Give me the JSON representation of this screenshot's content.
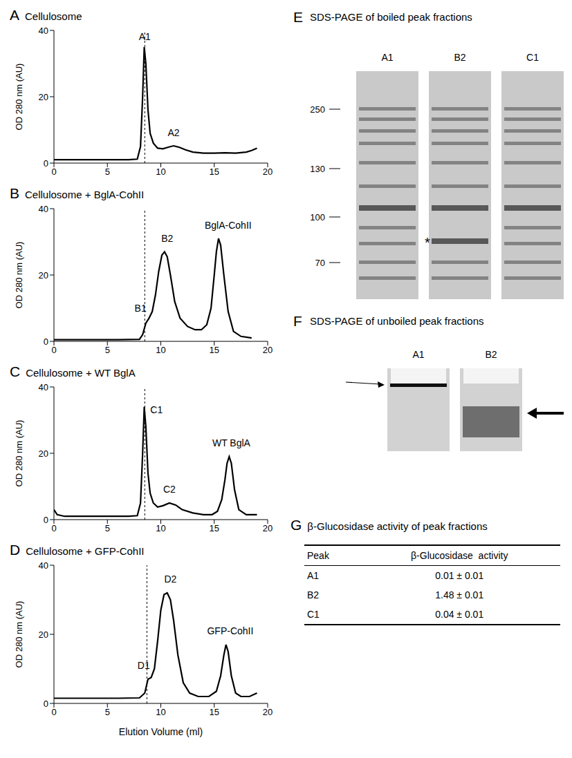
{
  "chart_data": [
    {
      "type": "line",
      "panel": "A",
      "title": "Cellulosome",
      "ylabel": "OD 280 nm (AU)",
      "color": "#000000",
      "line_style": "solid",
      "xlim": [
        0,
        20
      ],
      "xticks": [
        0,
        5,
        10,
        15,
        20
      ],
      "ylim": [
        0,
        40
      ],
      "yticks": [
        0,
        20,
        40
      ],
      "vline": 8.5,
      "x": [
        0,
        2,
        4,
        6,
        7,
        7.8,
        8.1,
        8.3,
        8.45,
        8.6,
        8.8,
        9.0,
        9.3,
        9.7,
        10.2,
        10.7,
        11.2,
        11.7,
        12.3,
        13,
        14,
        15,
        16,
        17,
        18,
        18.5,
        19
      ],
      "values": [
        1,
        1,
        1,
        1,
        1,
        1.2,
        5,
        20,
        35,
        30,
        16,
        9,
        6,
        4.5,
        4.3,
        4.8,
        5.2,
        4.8,
        4,
        3.3,
        3,
        3,
        3.1,
        3,
        3.3,
        3.8,
        4.5
      ],
      "annotations": [
        {
          "text": "A1",
          "x": 8.5,
          "y": 36
        },
        {
          "text": "A2",
          "x": 11.2,
          "y": 7
        }
      ]
    },
    {
      "type": "line",
      "panel": "B",
      "title": "Cellulosome + BglA-CohII",
      "ylabel": "OD 280 nm (AU)",
      "color": "#000000",
      "line_style": "solid",
      "xlim": [
        0,
        20
      ],
      "xticks": [
        0,
        5,
        10,
        15,
        20
      ],
      "ylim": [
        0,
        40
      ],
      "yticks": [
        0,
        20,
        40
      ],
      "vline": 8.5,
      "x": [
        0,
        2,
        4,
        6,
        8,
        8.3,
        8.6,
        8.9,
        9.2,
        9.5,
        9.8,
        10.1,
        10.35,
        10.6,
        10.9,
        11.3,
        11.8,
        12.5,
        13.2,
        13.8,
        14.3,
        14.7,
        15.0,
        15.2,
        15.4,
        15.6,
        15.9,
        16.3,
        16.8,
        17.5,
        18.5
      ],
      "values": [
        0.5,
        0.5,
        0.5,
        0.5,
        0.6,
        2,
        5.5,
        7,
        9,
        14,
        21,
        26,
        27,
        25.5,
        20,
        12,
        7,
        4.5,
        3.5,
        3.5,
        5,
        10,
        20,
        27,
        31,
        29,
        20,
        9,
        3,
        1.5,
        1
      ],
      "annotations": [
        {
          "text": "B1",
          "x": 8.1,
          "y": 8
        },
        {
          "text": "B2",
          "x": 10.6,
          "y": 29
        },
        {
          "text": "BglA-CohII",
          "x": 16.3,
          "y": 33
        }
      ]
    },
    {
      "type": "line",
      "panel": "C",
      "title": "Cellulosome + WT BglA",
      "ylabel": "OD 280 nm (AU)",
      "color": "#000000",
      "line_style": "solid",
      "xlim": [
        0,
        20
      ],
      "xticks": [
        0,
        5,
        10,
        15,
        20
      ],
      "ylim": [
        0,
        40
      ],
      "yticks": [
        0,
        20,
        40
      ],
      "vline": 8.5,
      "x": [
        0,
        0.3,
        1,
        3,
        5,
        7,
        7.8,
        8.1,
        8.3,
        8.45,
        8.6,
        8.8,
        9,
        9.3,
        9.7,
        10.2,
        10.8,
        11.4,
        12,
        13,
        14,
        14.8,
        15.3,
        15.7,
        16,
        16.2,
        16.4,
        16.6,
        16.9,
        17.3,
        18,
        19
      ],
      "values": [
        3,
        1.5,
        1,
        1,
        1,
        1,
        1.2,
        5,
        20,
        34,
        28,
        14,
        8,
        5,
        3.8,
        4.2,
        5,
        4.4,
        3,
        2,
        1.5,
        1.5,
        2.5,
        6,
        12,
        17,
        19,
        17,
        9,
        3,
        1.5,
        1.5
      ],
      "annotations": [
        {
          "text": "C1",
          "x": 9.6,
          "y": 31
        },
        {
          "text": "C2",
          "x": 10.8,
          "y": 7
        },
        {
          "text": "WT BglA",
          "x": 16.6,
          "y": 21
        }
      ]
    },
    {
      "type": "line",
      "panel": "D",
      "title": "Cellulosome + GFP-CohII",
      "ylabel": "OD 280 nm (AU)",
      "xlabel": "Elution Volume (ml)",
      "color": "#000000",
      "line_style": "solid",
      "xlim": [
        0,
        20
      ],
      "xticks": [
        0,
        5,
        10,
        15,
        20
      ],
      "ylim": [
        0,
        40
      ],
      "yticks": [
        0,
        20,
        40
      ],
      "vline": 8.7,
      "x": [
        0,
        2,
        4,
        6,
        8,
        8.5,
        8.8,
        9.1,
        9.4,
        9.7,
        10,
        10.3,
        10.6,
        10.9,
        11.2,
        11.6,
        12.1,
        12.7,
        13.5,
        14.5,
        15.2,
        15.6,
        15.9,
        16.1,
        16.3,
        16.6,
        17,
        17.5,
        18.3,
        19
      ],
      "values": [
        1.5,
        1.5,
        1.5,
        1.5,
        1.6,
        3,
        7,
        7.5,
        10,
        18,
        27,
        31.5,
        32,
        30,
        24,
        14,
        6,
        3,
        2,
        2,
        3.5,
        8,
        14,
        17,
        15,
        8,
        3,
        2,
        2,
        3
      ],
      "annotations": [
        {
          "text": "D1",
          "x": 8.4,
          "y": 9
        },
        {
          "text": "D2",
          "x": 10.9,
          "y": 34
        },
        {
          "text": "GFP-CohII",
          "x": 16.5,
          "y": 19
        }
      ]
    }
  ],
  "gels": {
    "E": {
      "panel": "E",
      "title": "SDS-PAGE of boiled peak fractions",
      "lanes": [
        "A1",
        "B2",
        "C1"
      ],
      "markers": [
        250,
        130,
        100,
        70
      ],
      "mark": {
        "lane": "B2",
        "text": "*"
      }
    },
    "F": {
      "panel": "F",
      "title": "SDS-PAGE of unboiled peak fractions",
      "lanes": [
        "A1",
        "B2"
      ]
    }
  },
  "table": {
    "panel": "G",
    "title": "β-Glucosidase activity of peak fractions",
    "columns": [
      "Peak",
      "β-Glucosidase  activity"
    ],
    "rows": [
      [
        "A1",
        "0.01 ± 0.01"
      ],
      [
        "B2",
        "1.48 ± 0.01"
      ],
      [
        "C1",
        "0.04 ± 0.01"
      ]
    ]
  }
}
